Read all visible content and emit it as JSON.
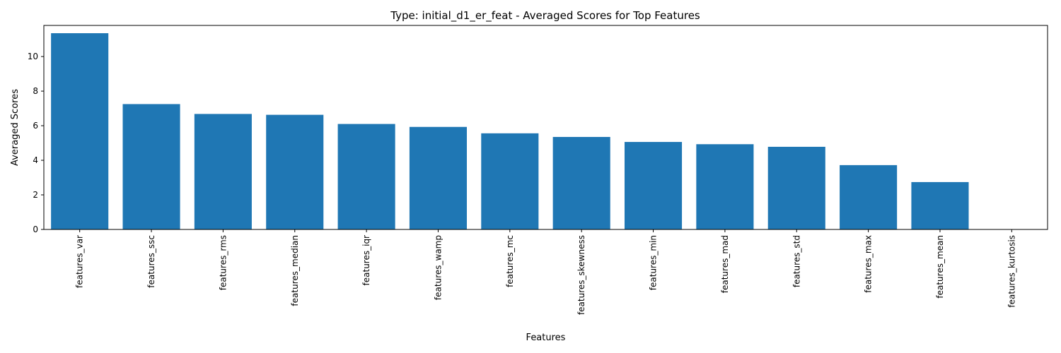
{
  "chart_data": {
    "type": "bar",
    "title": "Type: initial_d1_er_feat - Averaged Scores for Top Features",
    "xlabel": "Features",
    "ylabel": "Averaged Scores",
    "categories": [
      "features_var",
      "features_ssc",
      "features_rms",
      "features_median",
      "features_iqr",
      "features_wamp",
      "features_mc",
      "features_skewness",
      "features_min",
      "features_mad",
      "features_std",
      "features_max",
      "features_mean",
      "features_kurtosis"
    ],
    "values": [
      11.35,
      7.25,
      6.68,
      6.63,
      6.1,
      5.93,
      5.56,
      5.35,
      5.06,
      4.93,
      4.78,
      3.72,
      2.74,
      0.0
    ],
    "ylim": [
      0,
      11.8
    ],
    "yticks": [
      0,
      2,
      4,
      6,
      8,
      10
    ],
    "bar_color": "#1f77b4",
    "grid": false,
    "legend": "none"
  }
}
